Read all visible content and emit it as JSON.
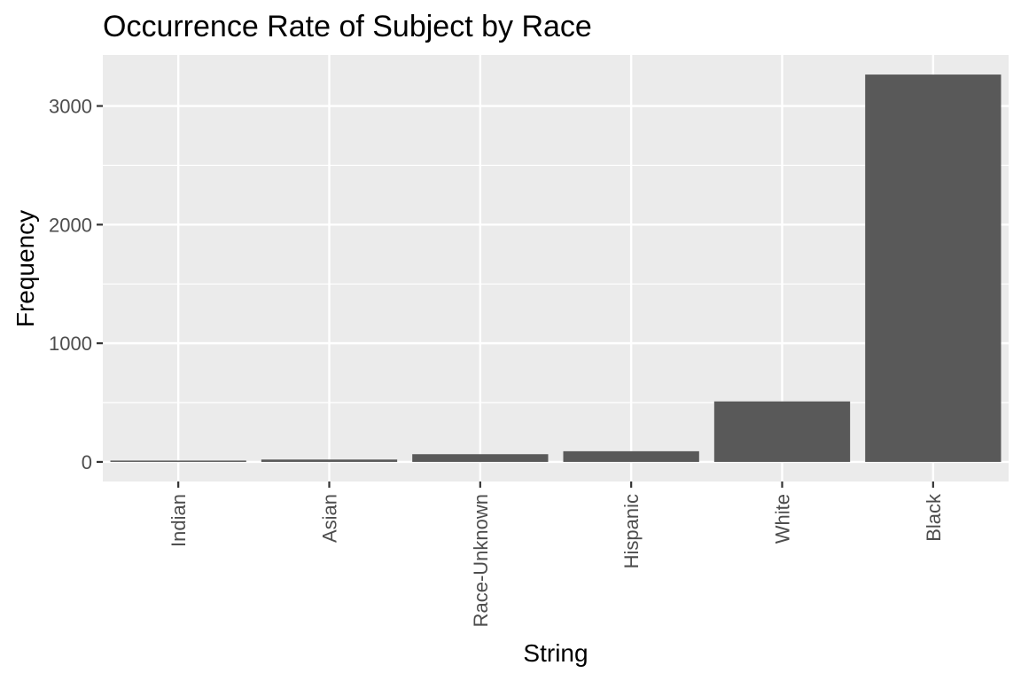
{
  "chart_data": {
    "type": "bar",
    "title": "Occurrence Rate of Subject by Race",
    "xlabel": "String",
    "ylabel": "Frequency",
    "categories": [
      "Indian",
      "Asian",
      "Race-Unknown",
      "Hispanic",
      "White",
      "Black"
    ],
    "values": [
      5,
      20,
      65,
      90,
      510,
      3265
    ],
    "ylim": [
      -165,
      3430
    ],
    "yticks": [
      0,
      1000,
      2000,
      3000
    ],
    "ytick_labels": [
      "0",
      "1000",
      "2000",
      "3000"
    ],
    "grid": true,
    "legend": "none",
    "colors": {
      "bar": "#595959",
      "panel": "#ebebeb",
      "grid": "#ffffff",
      "tick_label": "#4d4d4d"
    }
  }
}
